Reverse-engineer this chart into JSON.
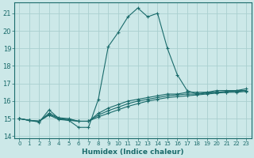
{
  "title": "",
  "xlabel": "Humidex (Indice chaleur)",
  "ylabel": "",
  "bg_color": "#cce8e8",
  "grid_color": "#aacfcf",
  "line_color": "#1a6b6b",
  "xlim": [
    -0.5,
    23.5
  ],
  "ylim": [
    13.9,
    21.6
  ],
  "yticks": [
    14,
    15,
    16,
    17,
    18,
    19,
    20,
    21
  ],
  "xticks": [
    0,
    1,
    2,
    3,
    4,
    5,
    6,
    7,
    8,
    9,
    10,
    11,
    12,
    13,
    14,
    15,
    16,
    17,
    18,
    19,
    20,
    21,
    22,
    23
  ],
  "lines": [
    {
      "x": [
        0,
        1,
        2,
        3,
        4,
        5,
        6,
        7,
        8,
        9,
        10,
        11,
        12,
        13,
        14,
        15,
        16,
        17,
        18,
        19,
        20,
        21,
        22,
        23
      ],
      "y": [
        15.0,
        14.9,
        14.8,
        15.5,
        15.0,
        14.9,
        14.5,
        14.5,
        16.1,
        19.1,
        19.9,
        20.8,
        21.3,
        20.8,
        21.0,
        19.0,
        17.5,
        16.6,
        16.4,
        16.5,
        16.5,
        16.5,
        16.6,
        16.6
      ]
    },
    {
      "x": [
        0,
        1,
        2,
        3,
        4,
        5,
        6,
        7,
        8,
        9,
        10,
        11,
        12,
        13,
        14,
        15,
        16,
        17,
        18,
        19,
        20,
        21,
        22,
        23
      ],
      "y": [
        15.0,
        14.9,
        14.85,
        15.3,
        15.05,
        15.0,
        14.85,
        14.85,
        15.3,
        15.6,
        15.8,
        16.0,
        16.1,
        16.2,
        16.3,
        16.4,
        16.4,
        16.5,
        16.5,
        16.5,
        16.6,
        16.6,
        16.6,
        16.7
      ]
    },
    {
      "x": [
        0,
        1,
        2,
        3,
        4,
        5,
        6,
        7,
        8,
        9,
        10,
        11,
        12,
        13,
        14,
        15,
        16,
        17,
        18,
        19,
        20,
        21,
        22,
        23
      ],
      "y": [
        15.0,
        14.9,
        14.85,
        15.25,
        15.0,
        14.95,
        14.85,
        14.85,
        15.2,
        15.45,
        15.65,
        15.85,
        16.0,
        16.1,
        16.2,
        16.3,
        16.35,
        16.4,
        16.4,
        16.45,
        16.5,
        16.55,
        16.55,
        16.6
      ]
    },
    {
      "x": [
        0,
        1,
        2,
        3,
        4,
        5,
        6,
        7,
        8,
        9,
        10,
        11,
        12,
        13,
        14,
        15,
        16,
        17,
        18,
        19,
        20,
        21,
        22,
        23
      ],
      "y": [
        15.0,
        14.9,
        14.85,
        15.2,
        14.95,
        14.9,
        14.85,
        14.85,
        15.1,
        15.3,
        15.5,
        15.7,
        15.85,
        16.0,
        16.1,
        16.2,
        16.25,
        16.3,
        16.35,
        16.4,
        16.45,
        16.5,
        16.5,
        16.55
      ]
    }
  ]
}
